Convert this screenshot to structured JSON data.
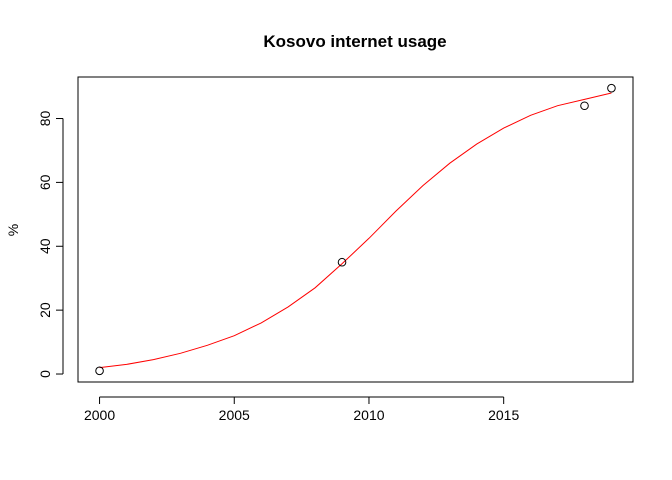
{
  "chart_data": {
    "type": "scatter",
    "title": "Kosovo internet usage",
    "xlabel": "",
    "ylabel": "%",
    "xlim": [
      1999.2,
      2019.8
    ],
    "ylim": [
      -2.5,
      93
    ],
    "x_ticks": [
      2000,
      2005,
      2010,
      2015
    ],
    "y_ticks": [
      0,
      20,
      40,
      60,
      80
    ],
    "grid": false,
    "series": [
      {
        "type": "scatter",
        "marker": "open-circle",
        "color": "#000000",
        "points": [
          {
            "x": 2000,
            "y": 1.0
          },
          {
            "x": 2009,
            "y": 35.0
          },
          {
            "x": 2018,
            "y": 84.0
          },
          {
            "x": 2019,
            "y": 89.5
          }
        ]
      },
      {
        "type": "line",
        "color": "#ff0000",
        "points": [
          {
            "x": 2000,
            "y": 2.0
          },
          {
            "x": 2001,
            "y": 3.0
          },
          {
            "x": 2002,
            "y": 4.5
          },
          {
            "x": 2003,
            "y": 6.5
          },
          {
            "x": 2004,
            "y": 9.0
          },
          {
            "x": 2005,
            "y": 12.0
          },
          {
            "x": 2006,
            "y": 16.0
          },
          {
            "x": 2007,
            "y": 21.0
          },
          {
            "x": 2008,
            "y": 27.0
          },
          {
            "x": 2009,
            "y": 34.5
          },
          {
            "x": 2010,
            "y": 42.5
          },
          {
            "x": 2011,
            "y": 51.0
          },
          {
            "x": 2012,
            "y": 59.0
          },
          {
            "x": 2013,
            "y": 66.0
          },
          {
            "x": 2014,
            "y": 72.0
          },
          {
            "x": 2015,
            "y": 77.0
          },
          {
            "x": 2016,
            "y": 81.0
          },
          {
            "x": 2017,
            "y": 84.0
          },
          {
            "x": 2018,
            "y": 86.0
          },
          {
            "x": 2019,
            "y": 88.0
          }
        ]
      }
    ]
  }
}
